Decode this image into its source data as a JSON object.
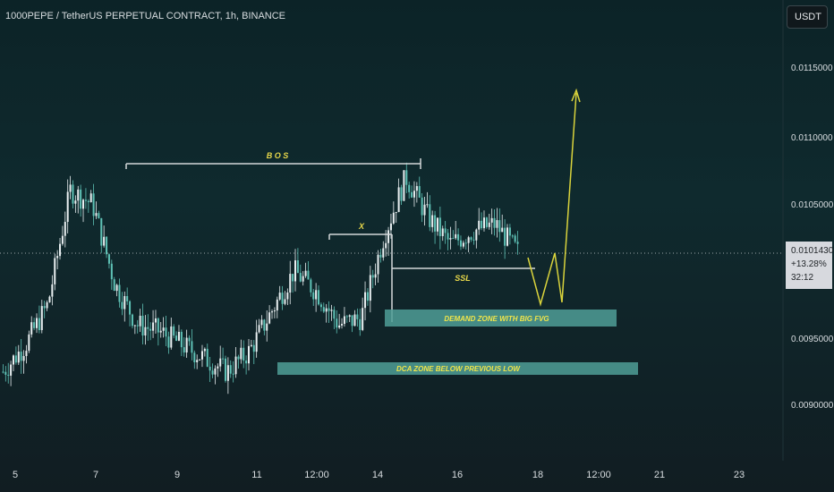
{
  "header": {
    "symbol": "1000PEPE / TetherUS PERPETUAL CONTRACT, 1h, BINANCE",
    "currency_button": "USDT"
  },
  "colors": {
    "background": "#0f2a2e",
    "candle_up": "#e8eef0",
    "candle_down": "#5ec1b5",
    "annotation_line": "#d4d8da",
    "annotation_text": "#e8d84a",
    "zone_fill": "#4f9e97",
    "projection": "#d9d33c"
  },
  "price_label": {
    "price": "0.0101430",
    "change": "+13.28%",
    "countdown": "32:12"
  },
  "annotations": {
    "bos": "B O S",
    "x": "X",
    "ssl": "SSL",
    "demand_zone": "DEMAND ZONE WITH BIG FVG",
    "dca_zone": "DCA ZONE BELOW PREVIOUS LOW"
  },
  "chart_data": {
    "type": "line",
    "title": "1000PEPE / TetherUS PERPETUAL CONTRACT, 1h, BINANCE",
    "xlabel": "",
    "ylabel": "",
    "x_ticks": [
      "5",
      "7",
      "9",
      "11",
      "12:00",
      "14",
      "16",
      "18",
      "12:00",
      "21",
      "23"
    ],
    "y_ticks": [
      "0.0115000",
      "0.0110000",
      "0.0105000",
      "0.0095000",
      "0.0090000"
    ],
    "ylim": [
      0.00885,
      0.0119
    ],
    "grid": false,
    "series": [
      {
        "x": [
          "5",
          "6",
          "7",
          "7.5",
          "8",
          "8.5",
          "9",
          "9.5",
          "10",
          "10.5",
          "11",
          "11.5",
          "12:00",
          "13",
          "13.5",
          "14",
          "14.25",
          "14.5",
          "15",
          "15.5",
          "16",
          "16.5",
          "17",
          "17.5"
        ],
        "values": [
          0.00925,
          0.00945,
          0.00975,
          0.0106,
          0.0105,
          0.0099,
          0.0096,
          0.00955,
          0.00945,
          0.00935,
          0.00925,
          0.0094,
          0.0097,
          0.01,
          0.00985,
          0.0096,
          0.00965,
          0.01025,
          0.0107,
          0.0104,
          0.0102,
          0.0103,
          0.01035,
          0.01014
        ]
      }
    ],
    "projection": [
      0.01013,
      0.00975,
      0.01005,
      0.00975,
      0.0114
    ],
    "levels": {
      "bos": 0.01074,
      "x": 0.01025,
      "ssl": 0.01008,
      "demand_zone": [
        0.00965,
        0.0098
      ],
      "dca_zone": [
        0.00925,
        0.00935
      ]
    },
    "last_price": 0.010143
  }
}
